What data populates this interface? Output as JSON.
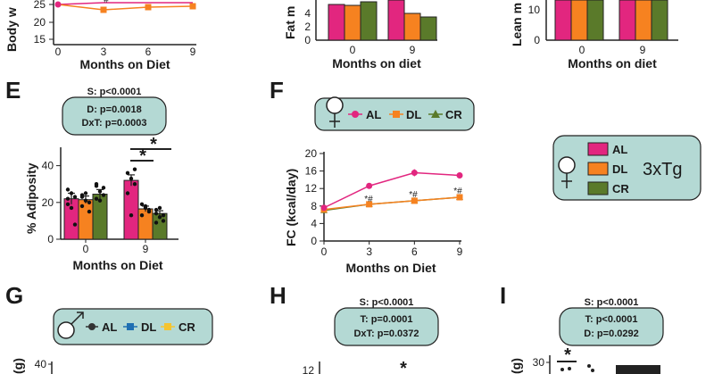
{
  "colors": {
    "AL": "#e2267f",
    "DL": "#f68220",
    "CR": "#5a7a2a",
    "male_AL": "#333333",
    "male_DL": "#1f6fb2",
    "male_CR": "#f4c430",
    "box": "#b4d9d4"
  },
  "icons": {
    "female": "female-symbol-icon",
    "male": "male-symbol-icon"
  },
  "panels": {
    "E": {
      "letter": "E",
      "stats": [
        "S: p<0.0001",
        "D: p=0.0018",
        "DxT: p=0.0003"
      ],
      "sig": [
        "*",
        "*"
      ]
    },
    "F": {
      "letter": "F",
      "marks": [
        "*#",
        "*#",
        "*#"
      ]
    },
    "G": {
      "letter": "G"
    },
    "H": {
      "letter": "H",
      "stats": [
        "S: p<0.0001",
        "T: p=0.0001",
        "DxT: p=0.0372"
      ],
      "sig": [
        "*"
      ],
      "y_tick": "12"
    },
    "I": {
      "letter": "I",
      "stats": [
        "S: p<0.0001",
        "T: p<0.0001",
        "D: p=0.0292"
      ],
      "sig": [
        "*"
      ],
      "y_tick": "30",
      "y_label_fragment": "(g)"
    },
    "A_partial": {
      "y_label": "Body w",
      "x_label": "Months on Diet",
      "x_ticks": [
        "0",
        "3",
        "6",
        "9"
      ],
      "y_ticks": [
        "15",
        "20",
        "25"
      ],
      "marks": [
        "*#"
      ]
    },
    "B_partial": {
      "y_label": "Fat m",
      "x_label": "Months on diet",
      "x_ticks": [
        "0",
        "9"
      ],
      "y_ticks": [
        "0",
        "2",
        "4"
      ]
    },
    "C_partial": {
      "y_label": "Lean m",
      "x_label": "Months on diet",
      "x_ticks": [
        "0",
        "9"
      ],
      "y_ticks": [
        "0",
        "10"
      ]
    }
  },
  "legends": {
    "female_series": {
      "labels": [
        "AL",
        "DL",
        "CR"
      ]
    },
    "male_series": {
      "labels": [
        "AL",
        "DL",
        "CR"
      ]
    },
    "genotype": {
      "labels": [
        "AL",
        "DL",
        "CR"
      ],
      "genotype": "3xTg"
    }
  },
  "chart_data": [
    {
      "id": "E",
      "type": "bar",
      "title": "",
      "xlabel": "Months on Diet",
      "ylabel": "% Adiposity",
      "categories": [
        "0",
        "9"
      ],
      "ylim": [
        0,
        50
      ],
      "yticks": [
        "0",
        "20",
        "40"
      ],
      "series": [
        {
          "name": "AL",
          "values": [
            22,
            32
          ],
          "err": [
            3,
            3
          ]
        },
        {
          "name": "DL",
          "values": [
            21.5,
            16.5
          ],
          "err": [
            2,
            1.5
          ]
        },
        {
          "name": "CR",
          "values": [
            24.5,
            14
          ],
          "err": [
            2.5,
            1.5
          ]
        }
      ],
      "points": [
        [
          [
            27,
            25,
            23,
            19,
            17,
            8,
            22
          ],
          [
            36,
            33,
            30,
            25,
            13,
            38
          ]
        ],
        [
          [
            24,
            21,
            20,
            18,
            25,
            15,
            23
          ],
          [
            19,
            17,
            15,
            13,
            18,
            16
          ]
        ],
        [
          [
            29,
            26,
            24,
            22,
            21,
            28,
            30
          ],
          [
            14,
            12,
            10,
            16,
            17,
            13,
            9
          ]
        ]
      ]
    },
    {
      "id": "F",
      "type": "line",
      "title": "",
      "xlabel": "Months on Diet",
      "ylabel": "FC (kcal/day)",
      "x": [
        0,
        3,
        6,
        9
      ],
      "xlim": [
        0,
        9
      ],
      "ylim": [
        0,
        20
      ],
      "yticks": [
        "0",
        "4",
        "8",
        "12",
        "16",
        "20"
      ],
      "xticks": [
        "0",
        "3",
        "6",
        "9"
      ],
      "series": [
        {
          "name": "AL",
          "values": [
            7.6,
            12.6,
            15.6,
            15.0
          ],
          "err": [
            0.3,
            0.4,
            0.8,
            0.7
          ]
        },
        {
          "name": "DL",
          "values": [
            7.2,
            8.4,
            9.2,
            10.0
          ],
          "err": [
            0.2,
            0.3,
            0.3,
            0.3
          ]
        },
        {
          "name": "CR",
          "values": [
            7.0,
            8.4,
            9.2,
            10.0
          ],
          "err": [
            0.2,
            0.3,
            0.3,
            0.3
          ]
        }
      ]
    }
  ]
}
